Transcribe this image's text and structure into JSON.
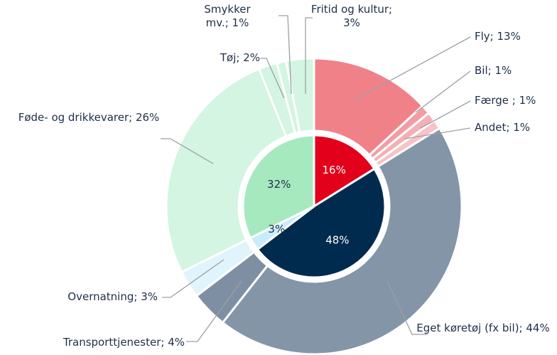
{
  "chart_data": {
    "type": "nested-pie",
    "inner": {
      "values": [
        16,
        48,
        3,
        32
      ],
      "value_labels": [
        "16%",
        "48%",
        "3%",
        "32%"
      ],
      "colors": [
        "#e2001a",
        "#002b4f",
        "#c8ecfb",
        "#a6e9bf"
      ]
    },
    "outer": {
      "values": [
        13,
        1,
        1,
        1,
        44,
        4,
        3,
        26,
        2,
        1,
        3
      ],
      "value_labels": [
        "Fly; 13%",
        "Bil; 1%",
        "Færge ; 1%",
        "Andet; 1%",
        "Eget køretøj (fx bil); 44%",
        "Transporttjenester; 4%",
        "Overnatning; 3%",
        "Føde- og drikkevarer; 26%",
        "Tøj; 2%",
        "Smykker mv.; 1%",
        "Fritid og kultur; 3%"
      ],
      "colors": [
        "#f18189",
        "#f39ca2",
        "#f5b0b5",
        "#f7c3c6",
        "#8495a8",
        "#7e8fa3",
        "#e0f4fc",
        "#d3f5e1",
        "#d3f5e1",
        "#d3f5e1",
        "#d3f5e1"
      ]
    }
  }
}
